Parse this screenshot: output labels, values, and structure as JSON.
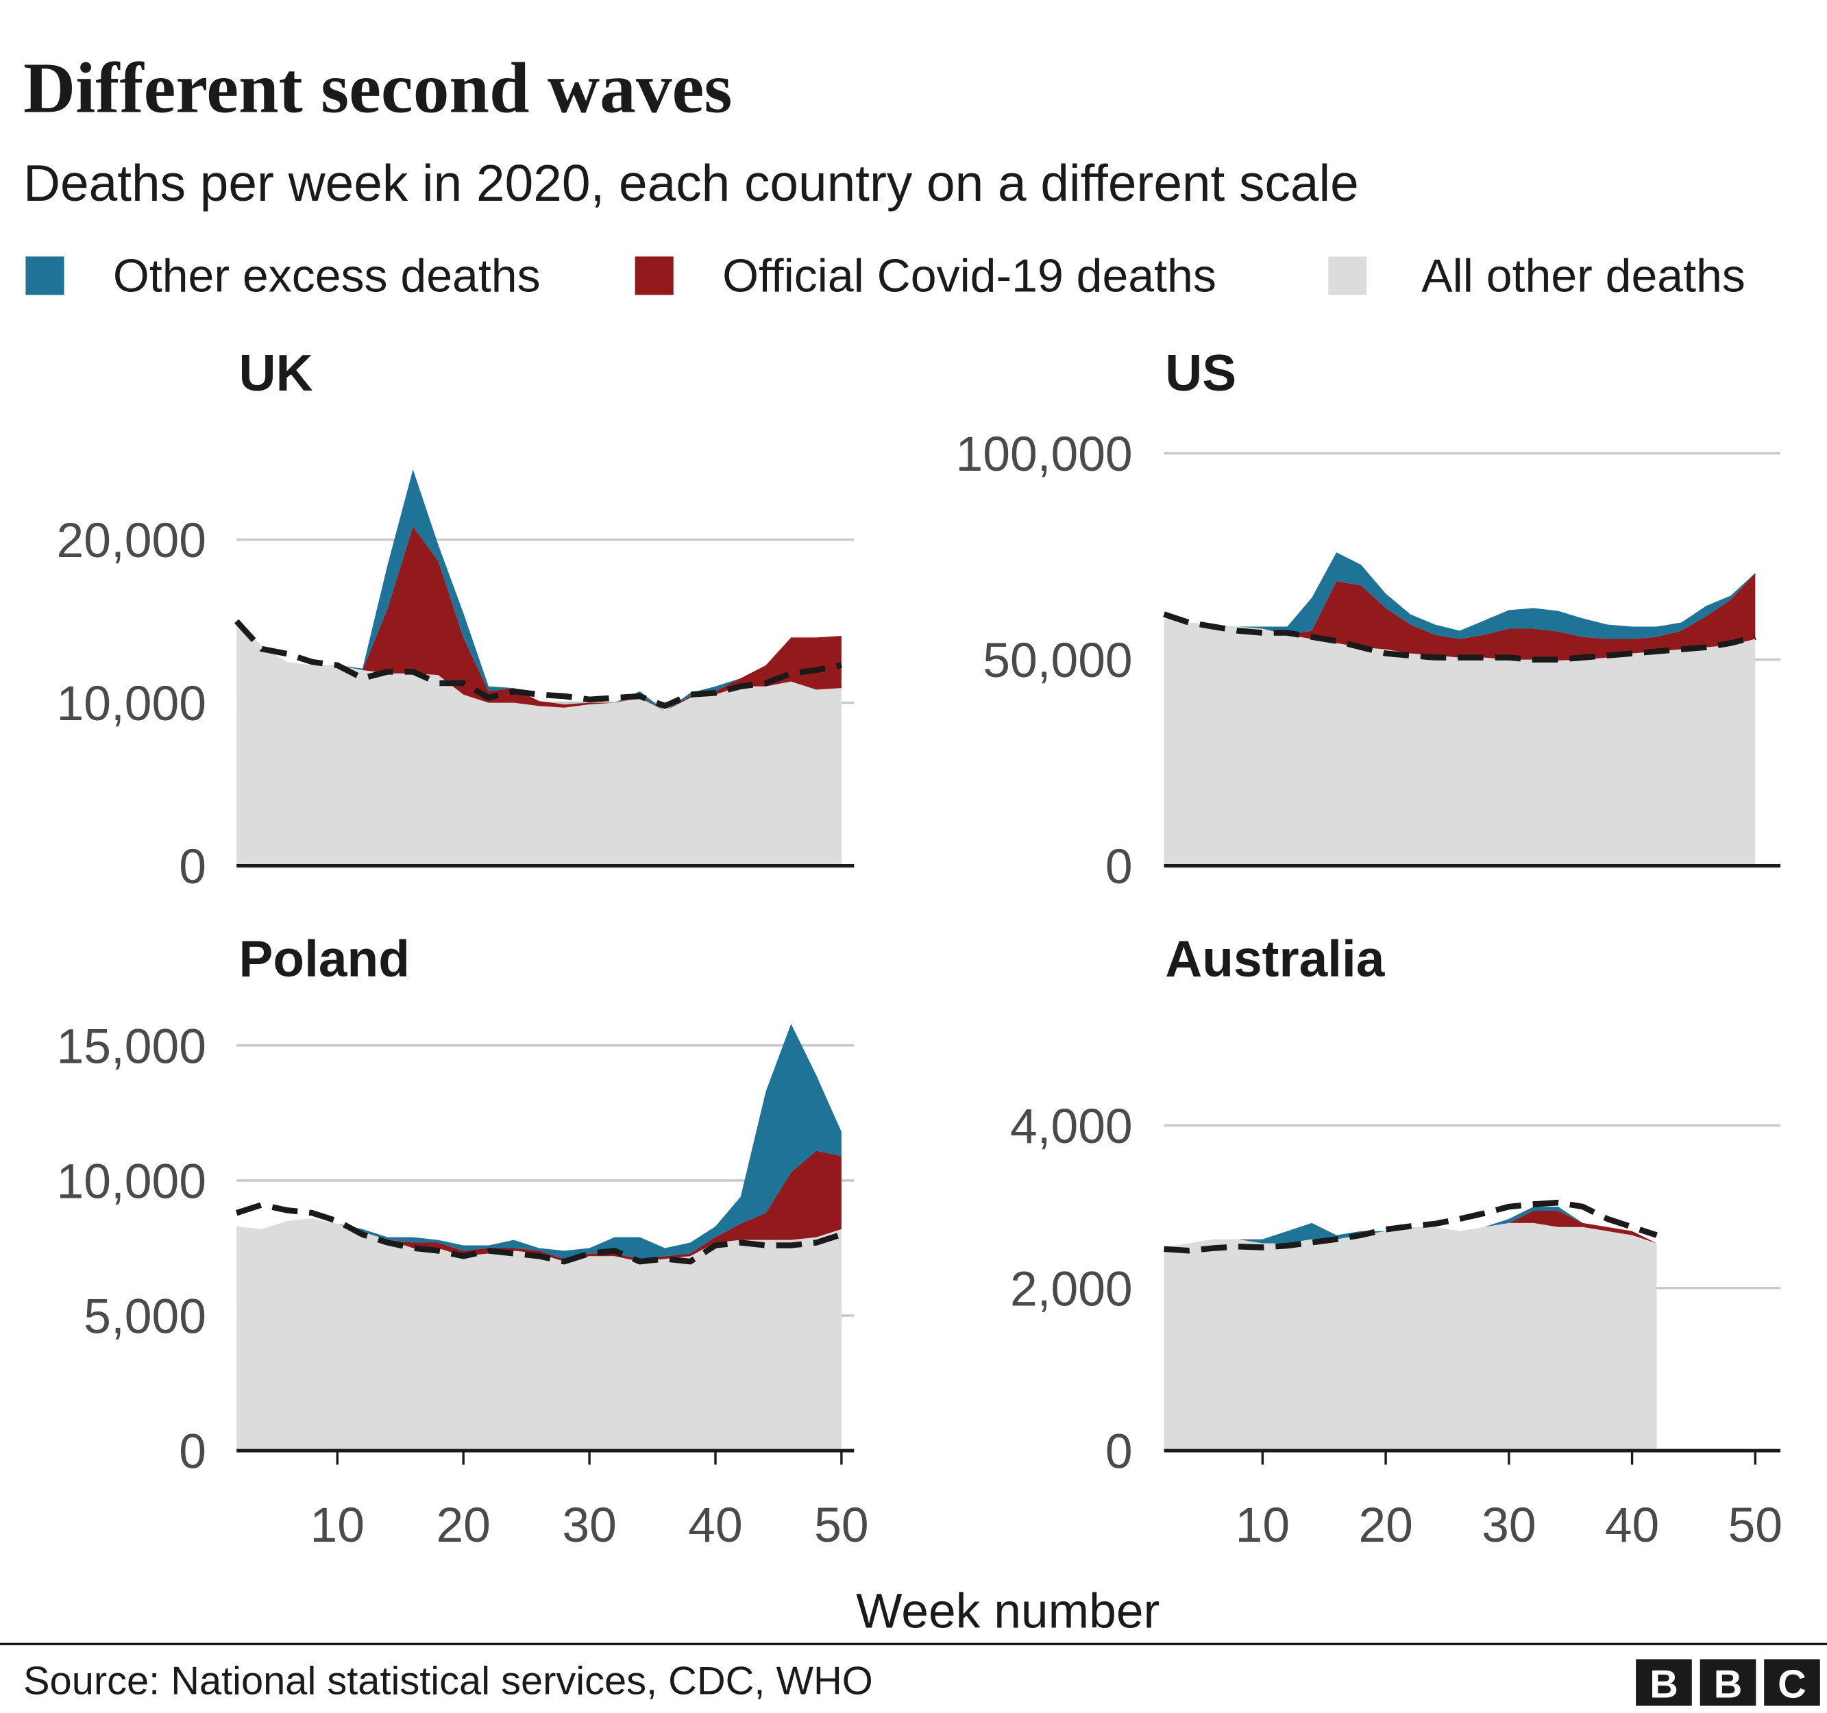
{
  "title": "Different second waves",
  "subtitle": "Deaths per week in 2020, each country on a different scale",
  "x_label": "Week number",
  "source": "Source: National statistical services, CDC, WHO",
  "logo": [
    "B",
    "B",
    "C"
  ],
  "chart_data": [
    {
      "type": "stacked_area",
      "title": "UK",
      "x": [
        2,
        4,
        6,
        8,
        10,
        12,
        14,
        16,
        18,
        20,
        22,
        24,
        26,
        28,
        30,
        32,
        34,
        36,
        38,
        40,
        42,
        44,
        46,
        48,
        50
      ],
      "series": [
        {
          "name": "All other deaths",
          "color": "#dcdcdc",
          "values": [
            15000,
            13500,
            12500,
            12300,
            12300,
            12000,
            11800,
            11800,
            11700,
            10500,
            10000,
            10000,
            9800,
            9700,
            9900,
            10000,
            10300,
            9500,
            10300,
            10500,
            11000,
            11000,
            11300,
            10800,
            10900
          ]
        },
        {
          "name": "Official Covid-19 deaths",
          "color": "#921a1d",
          "values": [
            0,
            0,
            0,
            0,
            0,
            0,
            4000,
            9000,
            7000,
            3500,
            700,
            900,
            300,
            200,
            100,
            0,
            100,
            0,
            100,
            200,
            500,
            1300,
            2700,
            3200,
            3200
          ]
        },
        {
          "name": "Other excess deaths",
          "color": "#1f7396",
          "values": [
            0,
            0,
            0,
            0,
            0,
            100,
            2700,
            3500,
            1000,
            1500,
            300,
            0,
            0,
            0,
            0,
            0,
            300,
            0,
            200,
            300,
            0,
            0,
            0,
            0,
            0
          ]
        }
      ],
      "baseline": {
        "color": "#1a1a1a",
        "dashed": true,
        "values": [
          15000,
          13300,
          13000,
          12500,
          12300,
          11500,
          11900,
          11900,
          11200,
          11200,
          10300,
          10700,
          10500,
          10400,
          10200,
          10300,
          10400,
          9800,
          10500,
          10600,
          11000,
          11200,
          11800,
          12000,
          12300
        ]
      },
      "xlim": [
        2,
        51
      ],
      "ylim": [
        0,
        25000
      ],
      "yticks": [
        0,
        {
          "value": 10000,
          "label": "10,000"
        },
        {
          "value": 20000,
          "label": "20,000"
        }
      ],
      "grid": true
    },
    {
      "type": "stacked_area",
      "title": "US",
      "x": [
        2,
        4,
        6,
        8,
        10,
        12,
        14,
        16,
        18,
        20,
        22,
        24,
        26,
        28,
        30,
        32,
        34,
        36,
        38,
        40,
        42,
        44,
        46,
        48,
        50
      ],
      "series": [
        {
          "name": "All other deaths",
          "color": "#dcdcdc",
          "values": [
            60000,
            59000,
            58500,
            58000,
            57500,
            56000,
            55000,
            54000,
            53000,
            52500,
            51500,
            51000,
            50500,
            50500,
            50000,
            50000,
            49800,
            50000,
            50500,
            51500,
            52000,
            52500,
            53000,
            53500,
            55000
          ]
        },
        {
          "name": "Official Covid-19 deaths",
          "color": "#921a1d",
          "values": [
            0,
            0,
            0,
            0,
            0,
            0,
            2000,
            15000,
            15000,
            10000,
            7000,
            5000,
            4500,
            5500,
            7500,
            7500,
            7000,
            5500,
            4500,
            3500,
            3500,
            4500,
            7500,
            11000,
            16000
          ]
        },
        {
          "name": "Other excess deaths",
          "color": "#1f7396",
          "values": [
            0,
            0,
            0,
            0,
            500,
            2000,
            8000,
            7000,
            5000,
            3500,
            2500,
            2500,
            2000,
            3500,
            4500,
            5000,
            5000,
            4500,
            3500,
            3000,
            2500,
            2000,
            2500,
            1000,
            0
          ]
        }
      ],
      "baseline": {
        "color": "#1a1a1a",
        "dashed": true,
        "values": [
          61000,
          59000,
          58000,
          57000,
          56500,
          56500,
          55500,
          54500,
          53000,
          51500,
          51000,
          50500,
          50500,
          50500,
          50500,
          50000,
          50000,
          50500,
          51000,
          51500,
          52000,
          52500,
          53000,
          54000,
          55500
        ]
      },
      "xlim": [
        2,
        51
      ],
      "ylim": [
        0,
        100000
      ],
      "yticks": [
        0,
        {
          "value": 50000,
          "label": "50,000"
        },
        {
          "value": 100000,
          "label": "100,000"
        }
      ],
      "grid": true
    },
    {
      "type": "stacked_area",
      "title": "Poland",
      "x": [
        2,
        4,
        6,
        8,
        10,
        12,
        14,
        16,
        18,
        20,
        22,
        24,
        26,
        28,
        30,
        32,
        34,
        36,
        38,
        40,
        42,
        44,
        46,
        48,
        50
      ],
      "series": [
        {
          "name": "All other deaths",
          "color": "#dcdcdc",
          "values": [
            8300,
            8200,
            8500,
            8600,
            8400,
            8100,
            7800,
            7500,
            7500,
            7200,
            7300,
            7400,
            7300,
            7000,
            7200,
            7200,
            7000,
            7100,
            7200,
            7700,
            7800,
            7800,
            7800,
            7900,
            8200
          ]
        },
        {
          "name": "Official Covid-19 deaths",
          "color": "#921a1d",
          "values": [
            0,
            0,
            0,
            0,
            0,
            0,
            0,
            200,
            200,
            200,
            200,
            100,
            100,
            100,
            100,
            100,
            100,
            100,
            100,
            200,
            600,
            1000,
            2500,
            3200,
            2700
          ]
        },
        {
          "name": "Other excess deaths",
          "color": "#1f7396",
          "values": [
            0,
            0,
            0,
            0,
            0,
            100,
            100,
            200,
            100,
            200,
            100,
            300,
            100,
            300,
            200,
            600,
            800,
            300,
            400,
            400,
            1000,
            4500,
            5500,
            2800,
            900
          ]
        }
      ],
      "baseline": {
        "color": "#1a1a1a",
        "dashed": true,
        "values": [
          8800,
          9100,
          8900,
          8800,
          8500,
          8000,
          7700,
          7500,
          7400,
          7200,
          7400,
          7300,
          7200,
          7000,
          7300,
          7400,
          7000,
          7100,
          7000,
          7600,
          7700,
          7600,
          7600,
          7700,
          8000
        ]
      },
      "xlim": [
        2,
        51
      ],
      "ylim": [
        0,
        16000
      ],
      "yticks": [
        0,
        {
          "value": 5000,
          "label": "5,000"
        },
        {
          "value": 10000,
          "label": "10,000"
        },
        {
          "value": 15000,
          "label": "15,000"
        }
      ],
      "xticks": [
        10,
        20,
        30,
        40,
        50
      ],
      "grid": true
    },
    {
      "type": "stacked_area",
      "title": "Australia",
      "x": [
        2,
        4,
        6,
        8,
        10,
        12,
        14,
        16,
        18,
        20,
        22,
        24,
        26,
        28,
        30,
        32,
        34,
        36,
        38,
        40,
        42
      ],
      "series": [
        {
          "name": "All other deaths",
          "color": "#dcdcdc",
          "values": [
            2500,
            2550,
            2600,
            2600,
            2550,
            2550,
            2600,
            2600,
            2650,
            2700,
            2750,
            2750,
            2700,
            2750,
            2800,
            2800,
            2750,
            2750,
            2700,
            2650,
            2550
          ]
        },
        {
          "name": "Official Covid-19 deaths",
          "color": "#921a1d",
          "values": [
            0,
            0,
            0,
            0,
            0,
            0,
            0,
            0,
            0,
            0,
            0,
            0,
            0,
            0,
            0,
            150,
            200,
            50,
            50,
            50,
            0
          ]
        },
        {
          "name": "Other excess deaths",
          "color": "#1f7396",
          "values": [
            0,
            0,
            0,
            0,
            50,
            150,
            200,
            50,
            50,
            0,
            0,
            0,
            0,
            0,
            50,
            50,
            50,
            0,
            0,
            0,
            0
          ]
        }
      ],
      "baseline": {
        "color": "#1a1a1a",
        "dashed": true,
        "values": [
          2480,
          2460,
          2490,
          2510,
          2500,
          2520,
          2560,
          2600,
          2650,
          2720,
          2760,
          2790,
          2850,
          2920,
          3000,
          3030,
          3050,
          3000,
          2850,
          2750,
          2650
        ]
      },
      "xlim": [
        2,
        51
      ],
      "ylim": [
        0,
        5000
      ],
      "yticks": [
        0,
        {
          "value": 2000,
          "label": "2,000"
        },
        {
          "value": 4000,
          "label": "4,000"
        }
      ],
      "xticks": [
        10,
        20,
        30,
        40,
        50
      ],
      "grid": true
    }
  ]
}
